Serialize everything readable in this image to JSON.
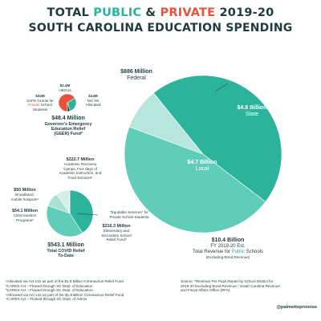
{
  "title": {
    "line1_prefix": "TOTAL ",
    "line1_public": "PUBLIC",
    "line1_amp": " & ",
    "line1_private": "PRIVATE",
    "line1_suffix": " 2019-20",
    "line2": "SOUTH CAROLINA EDUCATION SPENDING"
  },
  "colors": {
    "title": "#1f3b3a",
    "public_teal": "#2bb39c",
    "private_red": "#e8523b",
    "state": "#2bb39c",
    "local": "#5fcdb8",
    "federal": "#b7e6dc"
  },
  "chart_data": [
    {
      "type": "pie",
      "title": "Total Revenue for Public Schools",
      "total_label": "$10.4 Billion",
      "total_sub1": "FY 2019-20 Est.",
      "total_sub2_prefix": "Total Revenue for ",
      "total_sub2_public": "Public",
      "total_sub2_suffix": " Schools",
      "total_sub3": "(Excluding Bond Revenue)",
      "slices": [
        {
          "name": "State",
          "amount": "$4.8 Billion",
          "value": 4.8
        },
        {
          "name": "Local",
          "amount": "$4.7 Billion",
          "value": 4.7
        },
        {
          "name": "Federal",
          "amount": "$886 Million",
          "value": 0.886
        }
      ]
    },
    {
      "type": "pie",
      "title": "Governor's Emergency Education Relief (GEER) Fund",
      "total_label": "$48.4 Million",
      "total_sub": "Governor's Emergency Education Relief (GEER) Fund²",
      "slices": [
        {
          "name": "SAFE Grants for Private School Students",
          "amount": "$32M",
          "value": 32
        },
        {
          "name": "Not Yet Allocated",
          "amount": "$14M",
          "value": 14
        },
        {
          "name": "HBCUs",
          "amount": "$2.4M",
          "value": 2.4
        }
      ]
    },
    {
      "type": "pie",
      "title": "Total COVID Relief To-Date",
      "total_label": "$543.1 Million",
      "total_sub": "Total COVID Relief To-Date",
      "slices": [
        {
          "name": "Academic Recovery Camps, Five days of Academic Instruction, and Food Services",
          "amount": "$222.7 Million",
          "value": 222.7
        },
        {
          "name": "Elementary and Secondary School Relief Fund",
          "amount": "$216.3 Million",
          "value": 216.3
        },
        {
          "name": "Child Nutrition Programs",
          "amount": "$54.1 Million",
          "value": 54.1
        },
        {
          "name": "Broadband, mobile hotspots",
          "amount": "$50 Million",
          "value": 50
        },
        {
          "name": "\"Equitable Services\" for Private School Students",
          "amount": "",
          "value": 2.5
        }
      ]
    }
  ],
  "labels": {
    "federal_amount": "$886 Million",
    "federal_name": "Federal",
    "state_amount": "$4.8 Billion",
    "state_name": "State",
    "local_amount": "$4.7 Billion",
    "local_name": "Local",
    "hbcu_amount": "$2.4M",
    "hbcu_name": "HBCUs",
    "safe_amount": "$32M",
    "safe_line1": "SAFE Grants for",
    "safe_line2_private": "Private",
    "safe_line2_suffix": " School",
    "safe_line3": "Students",
    "notyet_amount": "$14M",
    "notyet_line1": "Not Yet",
    "notyet_line2": "Allocated",
    "geer_total": "$48.4 Million",
    "geer_line1": "Governor's Emergency",
    "geer_line2": "Education Relief",
    "geer_line3": "(GEER) Fund²",
    "camps_amount": "$222.7 Million",
    "camps_line1": "Academic Recovery",
    "camps_line2": "Camps, Five days of",
    "camps_line3": "Academic Instruction, and",
    "camps_line4": "Food Services¹",
    "broadband_amount": "$50 Million",
    "broadband_line1": "Broadband,",
    "broadband_line2": "mobile hotspots⁴",
    "nutrition_amount": "$54.1 Million",
    "nutrition_line1": "Child Nutrition",
    "nutrition_line2": "Programs⁵",
    "equitable_line1": "\"Equitable Services\" for",
    "equitable_line2": "Private School Students",
    "esser_amount": "$216.3 Million",
    "esser_line1": "Elementary and",
    "esser_line2": "Secondary School",
    "esser_line3": "Relief Fund³",
    "covid_total": "$543.1 Million",
    "covid_line1": "Total COVID Relief",
    "covid_line2": "To-Date"
  },
  "footnotes": [
    "¹Allocated via Act 142 as part of the $1.9 Billion Coronavirus Relief Fund",
    "²CARES Act – Flowed through SC Dept. of Education",
    "³CARES Act – Flowed through SC Dept. of Education",
    "⁴Allocated via Act 142 as part of the $1.9 Billion Coronavirus Relief Fund",
    "⁵CARES Act – Flowed through SC Dept. of Admin"
  ],
  "source": {
    "line1": "Source: \"Revenue Per Pupil Report by School District for",
    "line2": "2019-20 Excluding Bond Revenue,\" South Carolina Revenue",
    "line3": "and Fiscal Affairs Office (RFA)"
  },
  "handle": "@palmettopromise"
}
